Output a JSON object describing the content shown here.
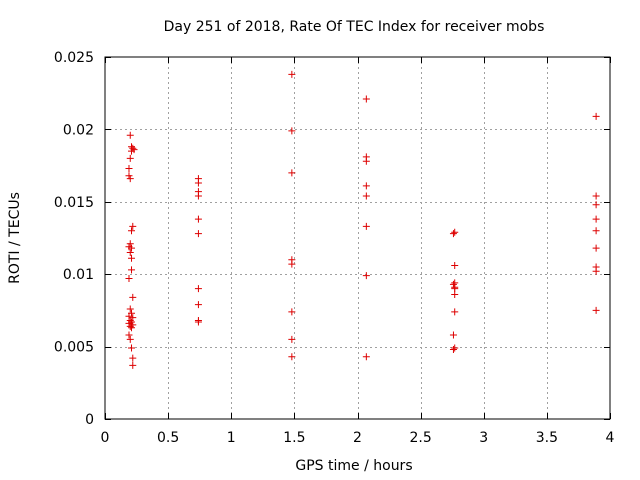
{
  "chart_data": {
    "type": "scatter",
    "title": "Day 251 of 2018, Rate Of TEC Index for receiver mobs",
    "xlabel": "GPS time / hours",
    "ylabel": "ROTI / TECUs",
    "xlim": [
      0,
      4
    ],
    "ylim": [
      0,
      0.025
    ],
    "xticks": [
      "0",
      "0.5",
      "1",
      "1.5",
      "2",
      "2.5",
      "3",
      "3.5",
      "4"
    ],
    "yticks": [
      "0",
      "0.005",
      "0.01",
      "0.015",
      "0.02",
      "0.025"
    ],
    "xtick_values": [
      0,
      0.5,
      1,
      1.5,
      2,
      2.5,
      3,
      3.5,
      4
    ],
    "ytick_values": [
      0,
      0.005,
      0.01,
      0.015,
      0.02,
      0.025
    ],
    "grid": true,
    "marker": "+",
    "color": "#dd0000",
    "series": [
      {
        "name": "ROTI",
        "points": [
          [
            0.2,
            0.0196
          ],
          [
            0.21,
            0.0188
          ],
          [
            0.22,
            0.0187
          ],
          [
            0.23,
            0.0186
          ],
          [
            0.21,
            0.0185
          ],
          [
            0.2,
            0.018
          ],
          [
            0.19,
            0.0173
          ],
          [
            0.19,
            0.0168
          ],
          [
            0.2,
            0.0166
          ],
          [
            0.22,
            0.0133
          ],
          [
            0.21,
            0.013
          ],
          [
            0.2,
            0.0121
          ],
          [
            0.19,
            0.0119
          ],
          [
            0.21,
            0.0118
          ],
          [
            0.2,
            0.0115
          ],
          [
            0.21,
            0.0111
          ],
          [
            0.21,
            0.0103
          ],
          [
            0.19,
            0.0097
          ],
          [
            0.22,
            0.0084
          ],
          [
            0.2,
            0.0076
          ],
          [
            0.21,
            0.0073
          ],
          [
            0.19,
            0.0071
          ],
          [
            0.22,
            0.007
          ],
          [
            0.2,
            0.0068
          ],
          [
            0.21,
            0.0067
          ],
          [
            0.19,
            0.0066
          ],
          [
            0.22,
            0.0065
          ],
          [
            0.2,
            0.0064
          ],
          [
            0.21,
            0.0063
          ],
          [
            0.19,
            0.0058
          ],
          [
            0.2,
            0.0055
          ],
          [
            0.21,
            0.0049
          ],
          [
            0.22,
            0.0042
          ],
          [
            0.22,
            0.0037
          ],
          [
            0.74,
            0.0166
          ],
          [
            0.74,
            0.0163
          ],
          [
            0.74,
            0.0157
          ],
          [
            0.74,
            0.0154
          ],
          [
            0.74,
            0.0138
          ],
          [
            0.74,
            0.0128
          ],
          [
            0.74,
            0.009
          ],
          [
            0.74,
            0.0079
          ],
          [
            0.74,
            0.0068
          ],
          [
            0.74,
            0.0067
          ],
          [
            1.48,
            0.0238
          ],
          [
            1.48,
            0.0199
          ],
          [
            1.48,
            0.017
          ],
          [
            1.48,
            0.011
          ],
          [
            1.48,
            0.0107
          ],
          [
            1.48,
            0.0074
          ],
          [
            1.48,
            0.0055
          ],
          [
            1.48,
            0.0043
          ],
          [
            2.07,
            0.0221
          ],
          [
            2.07,
            0.0181
          ],
          [
            2.07,
            0.0178
          ],
          [
            2.07,
            0.0161
          ],
          [
            2.07,
            0.0154
          ],
          [
            2.07,
            0.0133
          ],
          [
            2.07,
            0.0099
          ],
          [
            2.07,
            0.0043
          ],
          [
            2.77,
            0.0129
          ],
          [
            2.76,
            0.0128
          ],
          [
            2.77,
            0.0106
          ],
          [
            2.77,
            0.0094
          ],
          [
            2.76,
            0.0093
          ],
          [
            2.77,
            0.0091
          ],
          [
            2.77,
            0.009
          ],
          [
            2.77,
            0.0086
          ],
          [
            2.77,
            0.0074
          ],
          [
            2.76,
            0.0058
          ],
          [
            2.77,
            0.0049
          ],
          [
            2.76,
            0.0048
          ],
          [
            3.89,
            0.0209
          ],
          [
            3.89,
            0.0154
          ],
          [
            3.89,
            0.0148
          ],
          [
            3.89,
            0.0138
          ],
          [
            3.89,
            0.013
          ],
          [
            3.89,
            0.0118
          ],
          [
            3.89,
            0.0105
          ],
          [
            3.89,
            0.0102
          ],
          [
            3.89,
            0.0075
          ]
        ]
      }
    ]
  }
}
